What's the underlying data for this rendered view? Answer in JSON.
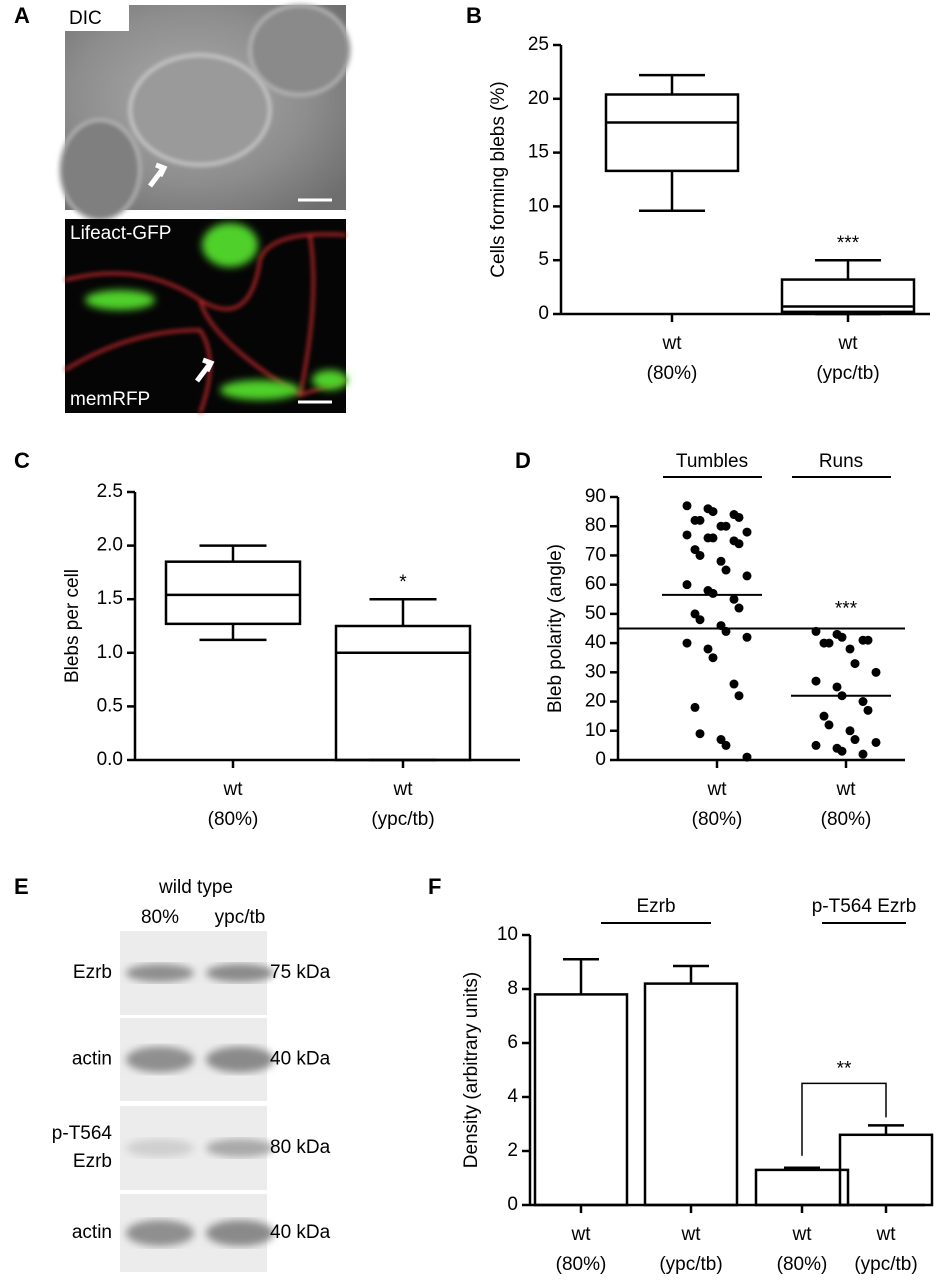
{
  "panel_a": {
    "panel_label": "A",
    "top_label": "DIC",
    "bottom_label_top": "Lifeact-GFP",
    "bottom_label_bottom": "memRFP"
  },
  "panel_e": {
    "panel_label": "E",
    "header": "wild type",
    "columns": [
      "80%",
      "ypc/tb"
    ],
    "rows": [
      {
        "label": [
          "Ezrb"
        ],
        "size": "75 kDa"
      },
      {
        "label": [
          "actin"
        ],
        "size": "40 kDa"
      },
      {
        "label": [
          "p-T564",
          "Ezrb"
        ],
        "size": "80 kDa"
      },
      {
        "label": [
          "actin"
        ],
        "size": "40 kDa"
      }
    ]
  },
  "chart_data": [
    {
      "type": "box",
      "panel_label": "B",
      "ylabel": "Cells forming blebs (%)",
      "categories": [
        "wt",
        "wt"
      ],
      "sublabels": [
        "(80%)",
        "(ypc/tb)"
      ],
      "min": [
        9.6,
        0
      ],
      "q1": [
        13.3,
        0.2
      ],
      "median": [
        17.8,
        0.7
      ],
      "q3": [
        20.4,
        3.2
      ],
      "max": [
        22.2,
        5.0
      ],
      "significance": [
        null,
        "***"
      ],
      "ylim": [
        0,
        25
      ],
      "yticks": [
        0,
        5,
        10,
        15,
        20,
        25
      ]
    },
    {
      "type": "box",
      "panel_label": "C",
      "ylabel": "Blebs per cell",
      "categories": [
        "wt",
        "wt"
      ],
      "sublabels": [
        "(80%)",
        "(ypc/tb)"
      ],
      "min": [
        1.12,
        0
      ],
      "q1": [
        1.27,
        0
      ],
      "median": [
        1.54,
        1.0
      ],
      "q3": [
        1.85,
        1.25
      ],
      "max": [
        2.0,
        1.5
      ],
      "significance": [
        null,
        "*"
      ],
      "ylim": [
        0,
        2.5
      ],
      "yticks": [
        {
          "value": 0,
          "label": "0.0"
        },
        0.5,
        {
          "value": 1,
          "label": "1.0"
        },
        1.5,
        {
          "value": 2,
          "label": "2.0"
        },
        2.5
      ]
    },
    {
      "type": "strip",
      "panel_label": "D",
      "ylabel": "Bleb polarity (angle)",
      "categories": [
        "wt",
        "wt"
      ],
      "sublabels": [
        "(80%)",
        "(80%)"
      ],
      "groups": [
        "Tumbles",
        "Runs"
      ],
      "points": [
        [
          87,
          86,
          85,
          84,
          83,
          82,
          82,
          80,
          80,
          78,
          77,
          76,
          76,
          75,
          74,
          72,
          70,
          68,
          65,
          63,
          60,
          58,
          57,
          55,
          52,
          50,
          48,
          46,
          44,
          42,
          40,
          38,
          35,
          26,
          22,
          18,
          9,
          7,
          5,
          1
        ],
        [
          44,
          43,
          42,
          41,
          41,
          40,
          40,
          38,
          33,
          30,
          27,
          25,
          22,
          20,
          17,
          15,
          12,
          10,
          7,
          6,
          5,
          4,
          3,
          2
        ]
      ],
      "means": [
        56.5,
        22
      ],
      "threshold": 45,
      "significance": [
        null,
        "***"
      ],
      "ylim": [
        0,
        90
      ],
      "yticks": [
        0,
        10,
        20,
        30,
        40,
        50,
        60,
        70,
        80,
        90
      ]
    },
    {
      "type": "bar",
      "panel_label": "F",
      "ylabel": "Density (arbitrary units)",
      "categories": [
        "wt",
        "wt",
        "wt",
        "wt"
      ],
      "sublabels": [
        "(80%)",
        "(ypc/tb)",
        "(80%)",
        "(ypc/tb)"
      ],
      "groups": [
        "Ezrb",
        "p-T564 Ezrb"
      ],
      "values": [
        7.8,
        8.2,
        1.3,
        2.6
      ],
      "errors": [
        1.3,
        0.65,
        0.08,
        0.35
      ],
      "significance": [
        null,
        null,
        null,
        "**"
      ],
      "ylim": [
        0,
        10
      ],
      "yticks": [
        0,
        2,
        4,
        6,
        8,
        10
      ]
    }
  ]
}
